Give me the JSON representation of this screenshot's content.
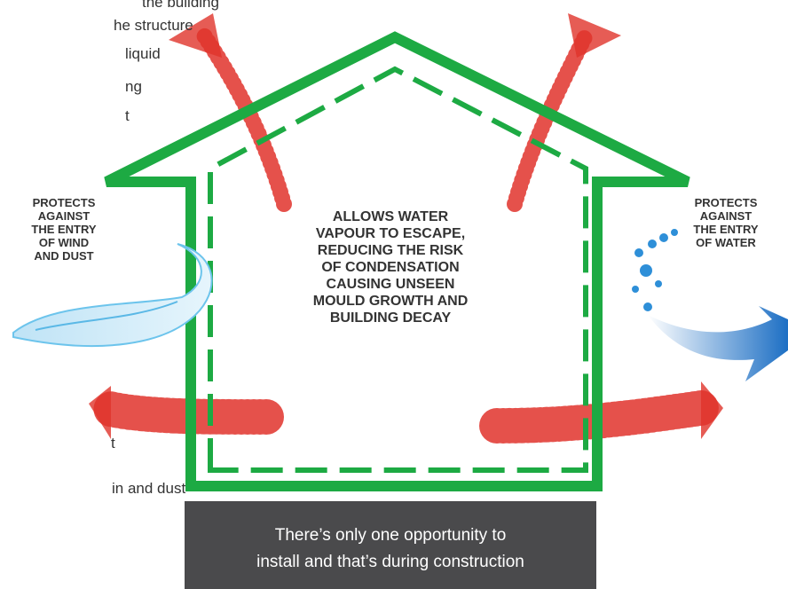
{
  "side_text": [
    "the building",
    "he structure",
    "liquid",
    "ng",
    "t",
    "t",
    "in and dust"
  ],
  "left_label": [
    "PROTECTS",
    "AGAINST",
    "THE ENTRY",
    "OF WIND",
    "AND DUST"
  ],
  "right_label": [
    "PROTECTS",
    "AGAINST",
    "THE ENTRY",
    "OF WATER"
  ],
  "center_label": [
    "ALLOWS WATER",
    "VAPOUR TO ESCAPE,",
    "REDUCING THE RISK",
    "OF CONDENSATION",
    "CAUSING UNSEEN",
    "MOULD GROWTH AND",
    "BUILDING DECAY"
  ],
  "banner": [
    "There’s only one opportunity to",
    "install and that’s during construction"
  ]
}
